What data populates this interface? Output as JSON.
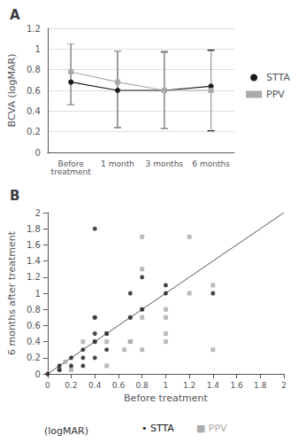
{
  "chart_data": [
    {
      "type": "line",
      "title": "A",
      "ylabel": "BCVA (logMAR)",
      "categories": [
        "Before\ntreatment",
        "1 month",
        "3 months",
        "6 months"
      ],
      "series": [
        {
          "name": "STTA",
          "color": "#1a1a1a",
          "marker": "circle",
          "values": [
            0.68,
            0.6,
            0.6,
            0.64
          ],
          "error_lower": [
            0.22,
            0.36,
            0.37,
            0.43
          ],
          "error_upper": [
            0.37,
            0.38,
            0.37,
            0.35
          ]
        },
        {
          "name": "PPV",
          "color": "#aaaaaa",
          "marker": "square",
          "values": [
            0.78,
            0.68,
            0.6,
            0.6
          ],
          "error_lower": [
            0.32,
            0.44,
            0.37,
            0.4
          ],
          "error_upper": [
            0.27,
            0.3,
            0.38,
            0.38
          ]
        }
      ],
      "ylim": [
        0,
        1.2
      ],
      "yticks": [
        0,
        0.2,
        0.4,
        0.6,
        0.8,
        1.0,
        1.2
      ],
      "grid": true,
      "legend": "right"
    },
    {
      "type": "scatter",
      "title": "B",
      "ylabel": "6 months after treatment",
      "xlabel": "Before treatment",
      "annotations": [
        "(logMAR)"
      ],
      "series": [
        {
          "name": "• STTA",
          "color": "#1a1a1a",
          "marker": "circle",
          "x": [
            0.0,
            0.1,
            0.1,
            0.2,
            0.2,
            0.3,
            0.3,
            0.3,
            0.4,
            0.4,
            0.4,
            0.4,
            0.5,
            0.5,
            0.7,
            0.7,
            0.8,
            0.8,
            1.0,
            1.0,
            1.4,
            0.4
          ],
          "values": [
            0.0,
            0.1,
            0.05,
            0.2,
            0.1,
            0.3,
            0.2,
            0.1,
            0.7,
            0.5,
            0.4,
            0.2,
            0.5,
            0.3,
            1.0,
            0.7,
            1.2,
            0.8,
            1.1,
            1.0,
            1.0,
            1.8
          ]
        },
        {
          "name": "■ PPV",
          "color": "#aaaaaa",
          "marker": "square",
          "x": [
            0.1,
            0.15,
            0.2,
            0.3,
            0.4,
            0.4,
            0.5,
            0.5,
            0.5,
            0.65,
            0.7,
            0.7,
            0.7,
            0.8,
            0.8,
            0.8,
            0.8,
            1.0,
            1.0,
            1.0,
            1.0,
            1.2,
            1.4,
            1.4,
            0.8,
            1.2
          ],
          "values": [
            0.05,
            0.15,
            0.05,
            0.4,
            0.7,
            0.4,
            0.5,
            0.4,
            0.1,
            0.3,
            0.7,
            0.4,
            0.4,
            0.8,
            0.7,
            0.3,
            1.3,
            0.7,
            0.4,
            0.5,
            0.8,
            1.0,
            0.3,
            1.1,
            1.7,
            1.7
          ]
        },
        {
          "type": "line",
          "color": "#555555",
          "x": [
            0,
            2
          ],
          "values": [
            0,
            2
          ]
        }
      ],
      "xlim": [
        0,
        2
      ],
      "ylim": [
        0,
        2
      ],
      "xticks": [
        0,
        0.2,
        0.4,
        0.6,
        0.8,
        1.0,
        1.2,
        1.4,
        1.6,
        1.8,
        2.0
      ],
      "yticks": [
        0,
        0.2,
        0.4,
        0.6,
        0.8,
        1.0,
        1.2,
        1.4,
        1.6,
        1.8,
        2.0
      ],
      "grid": false,
      "legend": "bottom"
    }
  ]
}
